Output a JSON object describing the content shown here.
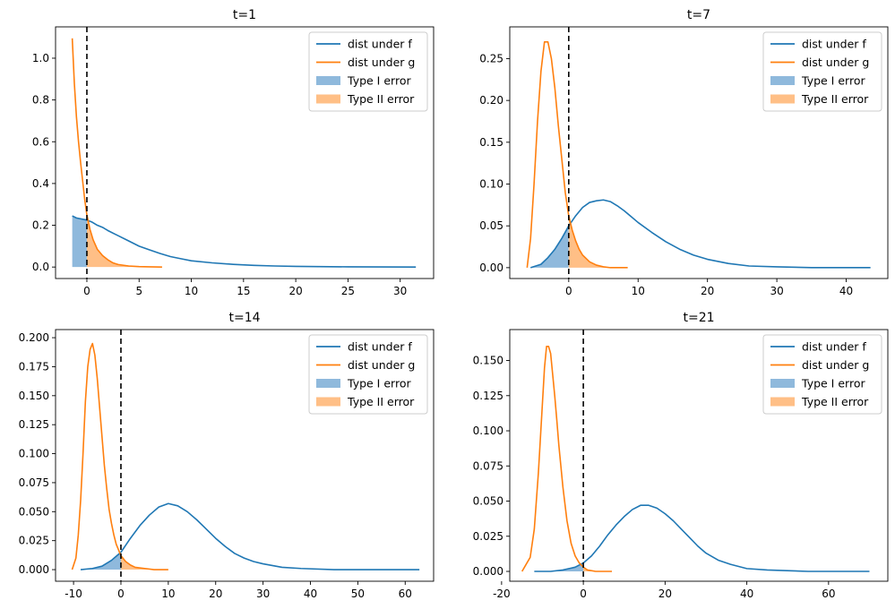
{
  "colors": {
    "f": "#1f77b4",
    "g": "#ff7f0e",
    "type1_fill": "#8fb9dc",
    "type2_fill": "#ffbf86",
    "threshold": "#000000"
  },
  "chart_data": [
    {
      "type": "line",
      "title": "t=1",
      "xlim": [
        -3.0,
        33.2
      ],
      "ylim": [
        -0.055,
        1.15
      ],
      "xticks": [
        0,
        5,
        10,
        15,
        20,
        25,
        30
      ],
      "yticks": [
        0.0,
        0.2,
        0.4,
        0.6,
        0.8,
        1.0
      ],
      "tick_decimals": 1,
      "threshold_x": 0,
      "legend": [
        "dist under f",
        "dist under g",
        "Type I error",
        "Type II error"
      ],
      "legend_position": "top-right",
      "series": [
        {
          "name": "dist under f",
          "x": [
            -1.4,
            -1.0,
            -0.5,
            0.0,
            0.5,
            1.0,
            1.5,
            2.0,
            3.0,
            4.0,
            5.0,
            6.0,
            7.0,
            8.0,
            9.0,
            10.0,
            12.0,
            14.0,
            16.0,
            18.0,
            20.0,
            25.0,
            31.5
          ],
          "y": [
            0.245,
            0.235,
            0.23,
            0.225,
            0.215,
            0.2,
            0.19,
            0.175,
            0.15,
            0.125,
            0.1,
            0.082,
            0.065,
            0.05,
            0.04,
            0.03,
            0.02,
            0.013,
            0.008,
            0.005,
            0.003,
            0.001,
            0.0
          ]
        },
        {
          "name": "dist under g",
          "x": [
            -1.4,
            -1.2,
            -1.0,
            -0.8,
            -0.6,
            -0.4,
            -0.2,
            0.0,
            0.3,
            0.6,
            1.0,
            1.5,
            2.0,
            2.5,
            3.0,
            4.0,
            5.0,
            6.0,
            7.2
          ],
          "y": [
            1.095,
            0.88,
            0.72,
            0.6,
            0.5,
            0.41,
            0.32,
            0.25,
            0.18,
            0.13,
            0.085,
            0.055,
            0.035,
            0.02,
            0.012,
            0.005,
            0.002,
            0.001,
            0.0
          ]
        }
      ]
    },
    {
      "type": "line",
      "title": "t=7",
      "xlim": [
        -8.5,
        46.0
      ],
      "ylim": [
        -0.013,
        0.288
      ],
      "xticks": [
        0,
        10,
        20,
        30,
        40
      ],
      "yticks": [
        0.0,
        0.05,
        0.1,
        0.15,
        0.2,
        0.25
      ],
      "tick_decimals": 2,
      "threshold_x": 0,
      "legend": [
        "dist under f",
        "dist under g",
        "Type I error",
        "Type II error"
      ],
      "legend_position": "top-right",
      "series": [
        {
          "name": "dist under f",
          "x": [
            -5.5,
            -4.0,
            -3.0,
            -2.0,
            -1.0,
            0.0,
            1.0,
            2.0,
            3.0,
            4.0,
            5.0,
            6.0,
            7.0,
            8.0,
            9.0,
            10.0,
            12.0,
            14.0,
            16.0,
            18.0,
            20.0,
            23.0,
            26.0,
            30.0,
            35.0,
            43.5
          ],
          "y": [
            0.0,
            0.004,
            0.012,
            0.022,
            0.035,
            0.05,
            0.062,
            0.072,
            0.078,
            0.08,
            0.081,
            0.079,
            0.074,
            0.068,
            0.061,
            0.054,
            0.042,
            0.031,
            0.022,
            0.015,
            0.01,
            0.005,
            0.002,
            0.001,
            0.0,
            0.0
          ]
        },
        {
          "name": "dist under g",
          "x": [
            -6.0,
            -5.5,
            -5.0,
            -4.5,
            -4.0,
            -3.5,
            -3.0,
            -2.5,
            -2.0,
            -1.5,
            -1.0,
            -0.5,
            0.0,
            0.5,
            1.0,
            1.5,
            2.0,
            3.0,
            4.0,
            5.0,
            6.0,
            8.5
          ],
          "y": [
            0.0,
            0.035,
            0.1,
            0.175,
            0.235,
            0.27,
            0.27,
            0.25,
            0.215,
            0.17,
            0.13,
            0.09,
            0.062,
            0.045,
            0.032,
            0.022,
            0.015,
            0.007,
            0.003,
            0.001,
            0.0,
            0.0
          ]
        }
      ]
    },
    {
      "type": "line",
      "title": "t=14",
      "xlim": [
        -13.8,
        66.0
      ],
      "ylim": [
        -0.01,
        0.207
      ],
      "xticks": [
        -10,
        0,
        10,
        20,
        30,
        40,
        50,
        60
      ],
      "yticks": [
        0.0,
        0.025,
        0.05,
        0.075,
        0.1,
        0.125,
        0.15,
        0.175,
        0.2
      ],
      "tick_decimals": 3,
      "threshold_x": 0,
      "legend": [
        "dist under f",
        "dist under g",
        "Type I error",
        "Type II error"
      ],
      "legend_position": "top-right",
      "series": [
        {
          "name": "dist under f",
          "x": [
            -8.5,
            -6.0,
            -4.0,
            -2.0,
            0.0,
            2.0,
            4.0,
            6.0,
            8.0,
            10.0,
            12.0,
            14.0,
            16.0,
            18.0,
            20.0,
            22.0,
            24.0,
            26.0,
            28.0,
            30.0,
            34.0,
            38.0,
            45.0,
            55.0,
            63.0
          ],
          "y": [
            0.0,
            0.001,
            0.003,
            0.008,
            0.015,
            0.027,
            0.038,
            0.047,
            0.054,
            0.057,
            0.055,
            0.05,
            0.043,
            0.035,
            0.027,
            0.02,
            0.014,
            0.01,
            0.007,
            0.005,
            0.002,
            0.001,
            0.0,
            0.0,
            0.0
          ]
        },
        {
          "name": "dist under g",
          "x": [
            -10.3,
            -9.5,
            -9.0,
            -8.5,
            -8.0,
            -7.5,
            -7.0,
            -6.5,
            -6.0,
            -5.5,
            -5.0,
            -4.5,
            -4.0,
            -3.5,
            -3.0,
            -2.5,
            -2.0,
            -1.5,
            -1.0,
            0.0,
            1.0,
            2.0,
            3.0,
            5.0,
            7.0,
            10.0
          ],
          "y": [
            0.0,
            0.01,
            0.03,
            0.06,
            0.1,
            0.145,
            0.175,
            0.19,
            0.195,
            0.185,
            0.165,
            0.14,
            0.115,
            0.09,
            0.07,
            0.052,
            0.04,
            0.03,
            0.022,
            0.012,
            0.007,
            0.004,
            0.002,
            0.001,
            0.0,
            0.0
          ]
        }
      ]
    },
    {
      "type": "line",
      "title": "t=21",
      "xlim": [
        -18.0,
        74.5
      ],
      "ylim": [
        -0.007,
        0.172
      ],
      "xticks": [
        -20,
        0,
        20,
        40,
        60
      ],
      "yticks": [
        0.0,
        0.025,
        0.05,
        0.075,
        0.1,
        0.125,
        0.15
      ],
      "tick_decimals": 3,
      "threshold_x": 0,
      "legend": [
        "dist under f",
        "dist under g",
        "Type I error",
        "Type II error"
      ],
      "legend_position": "top-right",
      "series": [
        {
          "name": "dist under f",
          "x": [
            -12.0,
            -8.0,
            -5.0,
            -2.0,
            0.0,
            2.0,
            4.0,
            6.0,
            8.0,
            10.0,
            12.0,
            14.0,
            16.0,
            18.0,
            20.0,
            22.0,
            24.0,
            26.0,
            28.0,
            30.0,
            33.0,
            36.0,
            40.0,
            45.0,
            55.0,
            70.0
          ],
          "y": [
            0.0,
            0.0,
            0.001,
            0.003,
            0.006,
            0.011,
            0.018,
            0.026,
            0.033,
            0.039,
            0.044,
            0.047,
            0.047,
            0.045,
            0.041,
            0.036,
            0.03,
            0.024,
            0.018,
            0.013,
            0.008,
            0.005,
            0.002,
            0.001,
            0.0,
            0.0
          ]
        },
        {
          "name": "dist under g",
          "x": [
            -15.0,
            -13.0,
            -12.0,
            -11.0,
            -10.0,
            -9.5,
            -9.0,
            -8.5,
            -8.0,
            -7.5,
            -7.0,
            -6.5,
            -6.0,
            -5.0,
            -4.0,
            -3.0,
            -2.0,
            -1.0,
            0.0,
            1.0,
            3.0,
            5.0,
            7.0
          ],
          "y": [
            0.0,
            0.01,
            0.03,
            0.07,
            0.12,
            0.145,
            0.16,
            0.16,
            0.155,
            0.14,
            0.125,
            0.108,
            0.09,
            0.06,
            0.036,
            0.02,
            0.011,
            0.006,
            0.003,
            0.001,
            0.0,
            0.0,
            0.0
          ]
        }
      ]
    }
  ]
}
